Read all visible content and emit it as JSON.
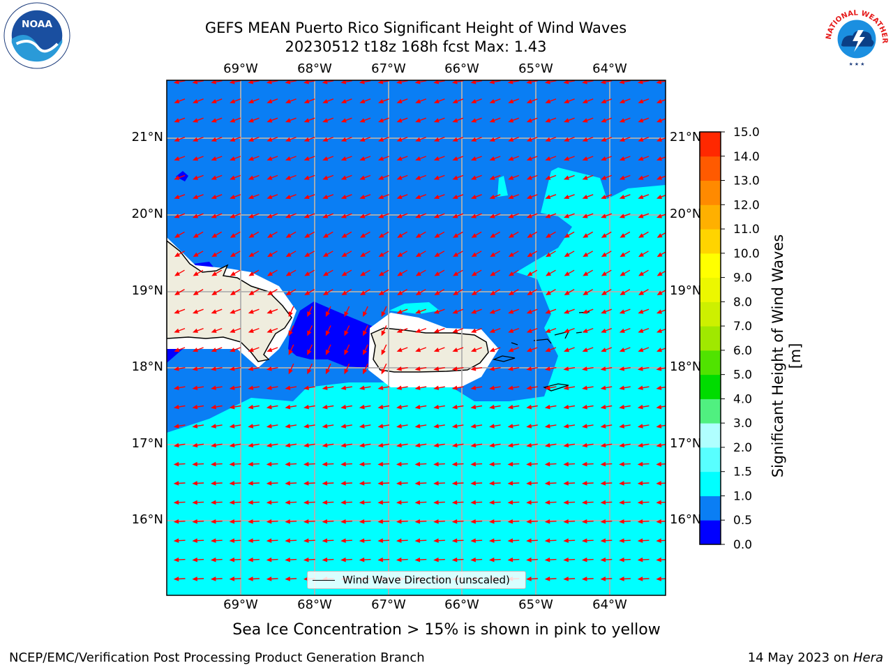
{
  "title": {
    "line1": "GEFS MEAN Puerto Rico Significant Height of Wind Waves",
    "line2": "20230512 t18z 168h fcst   Max: 1.43"
  },
  "logos": {
    "left": {
      "icon": "noaa-logo",
      "text": "NOAA"
    },
    "right": {
      "icon": "nws-logo",
      "ring_text": "NATIONAL WEATHER SERVICE"
    }
  },
  "map": {
    "lon_labels": [
      "69°W",
      "68°W",
      "67°W",
      "66°W",
      "65°W",
      "64°W"
    ],
    "lat_labels": [
      "21°N",
      "20°N",
      "19°N",
      "18°N",
      "17°N",
      "16°N"
    ],
    "extent": {
      "lon": [
        -70.0,
        -63.25
      ],
      "lat": [
        15.0,
        21.75
      ]
    },
    "arrow_color": "#ff0000",
    "land_color": "#efedde",
    "grid_color": "#b0b0b0",
    "legend": "Wind Wave Direction (unscaled)"
  },
  "colorbar": {
    "label": "Significant Height of Wind Waves [m]",
    "ticks": [
      "0.0",
      "0.5",
      "1.0",
      "1.5",
      "2.0",
      "3.0",
      "4.0",
      "5.0",
      "6.0",
      "7.0",
      "8.0",
      "9.0",
      "10.0",
      "11.0",
      "12.0",
      "13.0",
      "14.0",
      "15.0"
    ],
    "colors": [
      "#0000ff",
      "#0a7ef4",
      "#00ffff",
      "#58ffff",
      "#b0ffff",
      "#50f080",
      "#00dc00",
      "#50e300",
      "#a0e800",
      "#cdf000",
      "#ecf700",
      "#ffff00",
      "#ffd400",
      "#ffb000",
      "#ff8a00",
      "#ff5a00",
      "#ff2800",
      "#ff0000"
    ]
  },
  "note": "Sea Ice Concentration > 15% is shown in pink to yellow",
  "footer": {
    "left": "NCEP/EMC/Verification Post Processing Product Generation Branch",
    "right_prefix": "14 May 2023 on ",
    "right_host": "Hera"
  }
}
